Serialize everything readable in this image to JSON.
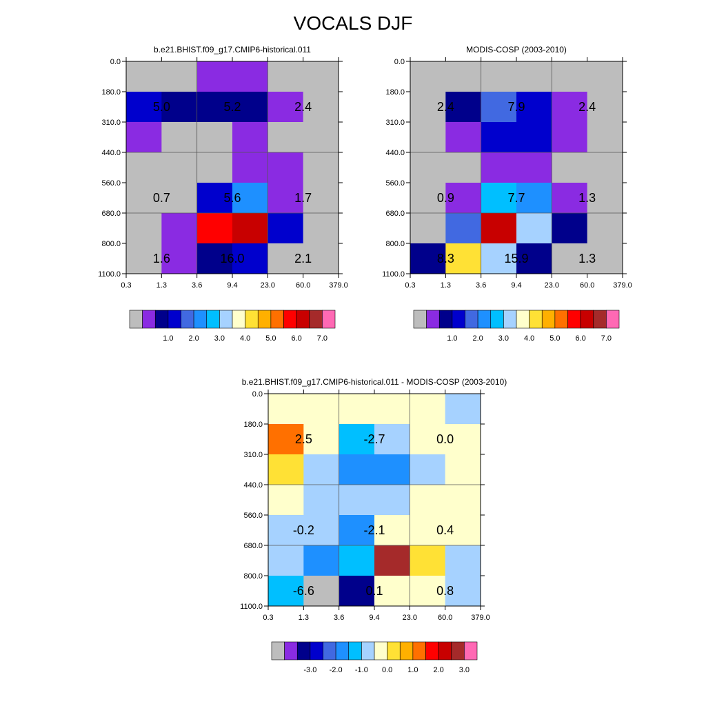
{
  "title": "VOCALS DJF",
  "colors": {
    "abs": [
      "#bdbdbd",
      "#8a2be2",
      "#00008b",
      "#0000cd",
      "#4169e1",
      "#1e90ff",
      "#00bfff",
      "#a6d2ff",
      "#ffffcc",
      "#ffe135",
      "#ffb000",
      "#ff7000",
      "#ff0000",
      "#c80000",
      "#a52a2a",
      "#ff69b4"
    ],
    "diff": [
      "#bdbdbd",
      "#8a2be2",
      "#00008b",
      "#0000cd",
      "#4169e1",
      "#1e90ff",
      "#00bfff",
      "#a6d2ff",
      "#ffffcc",
      "#ffe135",
      "#ffb000",
      "#ff7000",
      "#ff0000",
      "#c80000",
      "#a52a2a",
      "#ff69b4"
    ]
  },
  "chart_data": [
    {
      "type": "heatmap",
      "title": "b.e21.BHIST.f09_g17.CMIP6-historical.011",
      "xticks": [
        "0.3",
        "1.3",
        "3.6",
        "9.4",
        "23.0",
        "60.0",
        "379.0"
      ],
      "yticks": [
        "0.0",
        "180.0",
        "310.0",
        "440.0",
        "560.0",
        "680.0",
        "800.0",
        "1100.0"
      ],
      "cells": [
        [
          0,
          0,
          1,
          1,
          0,
          0
        ],
        [
          3,
          2,
          2,
          2,
          1,
          0
        ],
        [
          1,
          0,
          0,
          1,
          0,
          0
        ],
        [
          0,
          0,
          0,
          1,
          1,
          0
        ],
        [
          0,
          0,
          3,
          5,
          1,
          0
        ],
        [
          0,
          1,
          12,
          13,
          3,
          0
        ],
        [
          0,
          1,
          2,
          3,
          0,
          0
        ]
      ],
      "box_values": [
        [
          "5.0",
          "5.2",
          "2.4"
        ],
        [
          "0.7",
          "5.6",
          "1.7"
        ],
        [
          "1.6",
          "16.0",
          "2.1"
        ]
      ],
      "colorbar_labels": [
        "1.0",
        "2.0",
        "3.0",
        "4.0",
        "5.0",
        "6.0",
        "7.0"
      ]
    },
    {
      "type": "heatmap",
      "title": "MODIS-COSP (2003-2010)",
      "xticks": [
        "0.3",
        "1.3",
        "3.6",
        "9.4",
        "23.0",
        "60.0",
        "379.0"
      ],
      "yticks": [
        "0.0",
        "180.0",
        "310.0",
        "440.0",
        "560.0",
        "680.0",
        "800.0",
        "1100.0"
      ],
      "cells": [
        [
          0,
          0,
          0,
          0,
          0,
          0
        ],
        [
          0,
          2,
          4,
          3,
          1,
          0
        ],
        [
          0,
          1,
          3,
          3,
          1,
          0
        ],
        [
          0,
          0,
          1,
          1,
          0,
          0
        ],
        [
          0,
          1,
          6,
          5,
          1,
          0
        ],
        [
          0,
          4,
          13,
          7,
          2,
          0
        ],
        [
          2,
          9,
          7,
          2,
          0,
          0
        ]
      ],
      "box_values": [
        [
          "2.4",
          "7.9",
          "2.4"
        ],
        [
          "0.9",
          "7.7",
          "1.3"
        ],
        [
          "8.3",
          "15.9",
          "1.3"
        ]
      ],
      "colorbar_labels": [
        "1.0",
        "2.0",
        "3.0",
        "4.0",
        "5.0",
        "6.0",
        "7.0"
      ]
    },
    {
      "type": "heatmap",
      "title": "b.e21.BHIST.f09_g17.CMIP6-historical.011 - MODIS-COSP (2003-2010)",
      "xticks": [
        "0.3",
        "1.3",
        "3.6",
        "9.4",
        "23.0",
        "60.0",
        "379.0"
      ],
      "yticks": [
        "0.0",
        "180.0",
        "310.0",
        "440.0",
        "560.0",
        "680.0",
        "800.0",
        "1100.0"
      ],
      "cells": [
        [
          8,
          8,
          8,
          8,
          8,
          7
        ],
        [
          11,
          8,
          6,
          7,
          8,
          8
        ],
        [
          9,
          7,
          5,
          5,
          7,
          8
        ],
        [
          8,
          7,
          7,
          7,
          8,
          8
        ],
        [
          7,
          7,
          5,
          8,
          8,
          8
        ],
        [
          7,
          5,
          6,
          14,
          9,
          7
        ],
        [
          6,
          0,
          2,
          8,
          8,
          7
        ]
      ],
      "box_values": [
        [
          "2.5",
          "-2.7",
          "0.0"
        ],
        [
          "-0.2",
          "-2.1",
          "0.4"
        ],
        [
          "-6.6",
          "0.1",
          "0.8"
        ]
      ],
      "colorbar_labels": [
        "-3.0",
        "-2.0",
        "-1.0",
        "0.0",
        "1.0",
        "2.0",
        "3.0"
      ]
    }
  ]
}
